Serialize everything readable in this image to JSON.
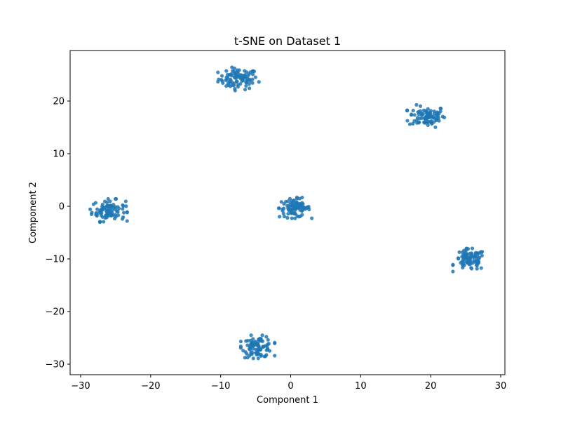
{
  "chart_data": {
    "type": "scatter",
    "title": "t-SNE on Dataset 1",
    "xlabel": "Component 1",
    "ylabel": "Component 2",
    "xlim": [
      -31.5,
      30.6
    ],
    "ylim": [
      -32.0,
      29.6
    ],
    "xticks": [
      -30,
      -20,
      -10,
      0,
      10,
      20,
      30
    ],
    "yticks": [
      -30,
      -20,
      -10,
      0,
      10,
      20
    ],
    "grid": false,
    "legend": "none",
    "point_color": "#1f77b4",
    "clusters": [
      {
        "center": [
          -7.5,
          24.2
        ],
        "spread": [
          1.4,
          1.0
        ],
        "count": 90
      },
      {
        "center": [
          19.5,
          17.1
        ],
        "spread": [
          1.3,
          1.0
        ],
        "count": 90
      },
      {
        "center": [
          -26.0,
          -0.8
        ],
        "spread": [
          1.2,
          1.0
        ],
        "count": 90
      },
      {
        "center": [
          0.6,
          -0.3
        ],
        "spread": [
          1.1,
          0.9
        ],
        "count": 90
      },
      {
        "center": [
          25.6,
          -10.2
        ],
        "spread": [
          1.1,
          1.0
        ],
        "count": 90
      },
      {
        "center": [
          -4.7,
          -26.7
        ],
        "spread": [
          1.1,
          1.0
        ],
        "count": 90
      }
    ]
  }
}
